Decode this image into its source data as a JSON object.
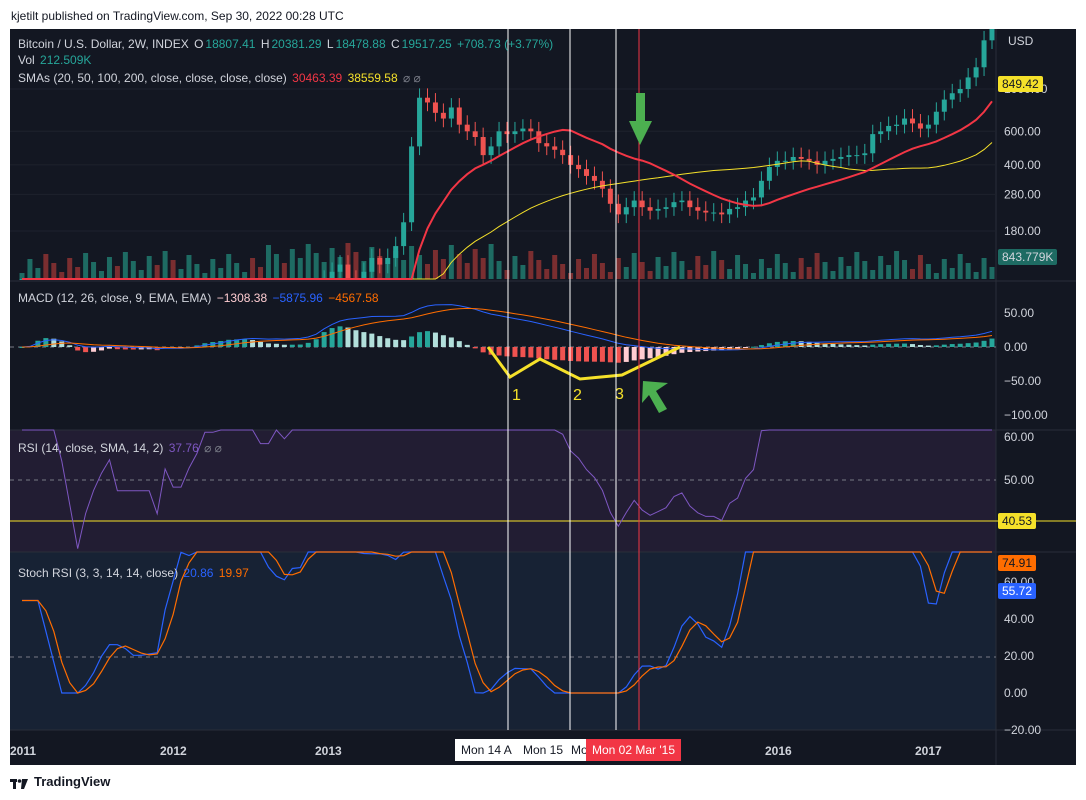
{
  "credit": "kjetilt published on TradingView.com, Sep 30, 2022 00:28 UTC",
  "brand": "TradingView",
  "colors": {
    "bg": "#131722",
    "up": "#26a69a",
    "down": "#ef5350",
    "sma20": "#f23645",
    "sma50": "#f5e12a",
    "macd": "#2962ff",
    "signal": "#ff6d00",
    "rsi": "#7e57c2",
    "stoch_k": "#2962ff",
    "stoch_d": "#ff6d00",
    "annotation_yellow": "#f5e12a",
    "arrow_green": "#4caf50"
  },
  "legend": {
    "title": "Bitcoin / U.S. Dollar, 2W, INDEX",
    "o_label": "O",
    "o": "18807.41",
    "h_label": "H",
    "h": "20381.29",
    "l_label": "L",
    "l": "18478.88",
    "c_label": "C",
    "c": "19517.25",
    "change": "+708.73 (+3.77%)",
    "vol_label": "Vol",
    "vol": "212.509K",
    "sma_label": "SMAs (20, 50, 100, 200, close, close, close, close)",
    "sma20_val": "30463.39",
    "sma50_val": "38559.58",
    "sma_icons": "⌀ ⌀",
    "macd_label": "MACD (12, 26, close, 9, EMA, EMA)",
    "macd_hist": "−1308.38",
    "macd_line": "−5875.96",
    "macd_signal": "−4567.58",
    "rsi_label": "RSI (14, close, SMA, 14, 2)",
    "rsi_val": "37.76",
    "rsi_icons": "⌀ ⌀",
    "stoch_label": "Stoch RSI (3, 3, 14, 14, close)",
    "stoch_k": "20.86",
    "stoch_d": "19.97"
  },
  "price_axis": {
    "currency": "USD",
    "ticks": [
      "1000.00",
      "600.00",
      "400.00",
      "280.00",
      "180.00"
    ],
    "tag_sma50": "849.42",
    "tag_volume": "843.779K"
  },
  "macd_axis": {
    "ticks": [
      "50.00",
      "0.00",
      "−50.00",
      "−100.00"
    ]
  },
  "rsi_axis": {
    "ticks": [
      "60.00",
      "50.00"
    ],
    "tag": "40.53"
  },
  "stoch_axis": {
    "ticks": [
      "60.00",
      "40.00",
      "20.00",
      "0.00",
      "−20.00"
    ],
    "tag_d": "74.91",
    "tag_k": "55.72"
  },
  "time_axis": {
    "labels": [
      {
        "text": "2011"
      },
      {
        "text": "2012"
      },
      {
        "text": "2013"
      },
      {
        "text": "2016"
      },
      {
        "text": "2017"
      }
    ],
    "tags": [
      {
        "text": "Mon 14 A"
      },
      {
        "text": "Mon 15"
      },
      {
        "text": "Mo"
      },
      {
        "text": "Mon 02 Mar '15"
      }
    ]
  },
  "annotations": {
    "labels": [
      "1",
      "2",
      "3"
    ]
  },
  "chart_data": [
    {
      "type": "candlestick",
      "name": "Bitcoin / U.S. Dollar, 2W, INDEX",
      "log_scale": true,
      "y_ticks": [
        180,
        280,
        400,
        600,
        1000
      ],
      "close_approx": [
        5,
        6,
        15,
        14,
        10,
        7,
        5,
        3,
        4,
        5,
        6,
        7,
        5,
        5,
        5,
        5,
        5,
        4,
        6,
        5,
        5,
        6,
        7,
        9,
        9,
        10,
        12,
        12,
        13,
        12,
        10,
        10,
        12,
        11,
        13,
        14,
        20,
        35,
        100,
        110,
        120,
        100,
        90,
        110,
        130,
        120,
        130,
        150,
        200,
        500,
        900,
        850,
        750,
        700,
        800,
        650,
        600,
        560,
        450,
        500,
        600,
        580,
        600,
        620,
        600,
        520,
        500,
        480,
        450,
        400,
        380,
        350,
        330,
        300,
        250,
        220,
        240,
        260,
        240,
        230,
        235,
        240,
        255,
        260,
        240,
        230,
        225,
        225,
        220,
        235,
        240,
        260,
        270,
        330,
        390,
        420,
        420,
        440,
        430,
        420,
        400,
        420,
        430,
        440,
        450,
        450,
        460,
        580,
        600,
        640,
        650,
        700,
        660,
        620,
        650,
        760,
        880,
        950,
        1000,
        1150,
        1300,
        1800,
        2500
      ],
      "sma20_label_value": 30463.39,
      "sma50_label_value": 38559.58
    },
    {
      "type": "bar",
      "name": "Vol",
      "last_value": "212.509K"
    },
    {
      "type": "histogram",
      "name": "MACD (12, 26, close, 9, EMA, EMA)",
      "y_ticks": [
        -100,
        -50,
        0,
        50
      ],
      "values": {
        "histogram": -1308.38,
        "macd": -5875.96,
        "signal": -4567.58
      }
    },
    {
      "type": "line",
      "name": "RSI (14, close, SMA, 14, 2)",
      "y_ticks": [
        50,
        60
      ],
      "last_value": 37.76,
      "horizontal_line": 40.53
    },
    {
      "type": "line",
      "name": "Stoch RSI (3, 3, 14, 14, close)",
      "y_ticks": [
        -20,
        0,
        20,
        40,
        60
      ],
      "k": 20.86,
      "d": 19.97
    }
  ]
}
